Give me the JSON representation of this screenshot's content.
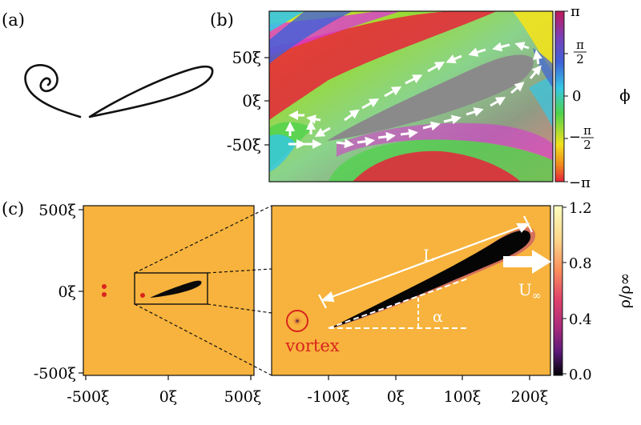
{
  "panel_labels": {
    "a": "(a)",
    "b": "(b)",
    "c": "(c)"
  },
  "panel_b": {
    "yticks": [
      "50ξ",
      "0ξ",
      "-50ξ"
    ],
    "colorbar_ticks": [
      "π",
      "π",
      "2",
      "0",
      "−",
      "π",
      "2",
      "−π"
    ],
    "colorbar_ticks_display": {
      "top": "π",
      "half_pi_num": "π",
      "half_pi_den": "2",
      "zero": "0",
      "neg_sign": "−",
      "neg_half_num": "π",
      "neg_half_den": "2",
      "bottom": "−π"
    },
    "colorbar_label": "ϕ",
    "colors": {
      "red": "#e8233a",
      "yellow": "#f2e21d",
      "green": "#4fd34b",
      "cyan": "#35c7e6",
      "blue": "#3e62d8",
      "magenta": "#d93bd1",
      "foil": "#8a8a8a"
    }
  },
  "panel_c_left": {
    "yticks": [
      "500ξ",
      "0ξ",
      "-500ξ"
    ],
    "xticks": [
      "-500ξ",
      "0ξ",
      "500ξ"
    ],
    "background": "#f7b33d"
  },
  "panel_c_right": {
    "xticks": [
      "-100ξ",
      "0ξ",
      "100ξ",
      "200ξ"
    ],
    "annotations": {
      "length": "L",
      "angle": "α",
      "vortex": "vortex",
      "flow_sym": "U",
      "flow_sub": "∞"
    },
    "colorbar_ticks": [
      "1.2",
      "0.8",
      "0.4",
      "0.0"
    ],
    "colorbar_label": "ρ/ρ∞",
    "vortex_color": "#d9241e"
  }
}
